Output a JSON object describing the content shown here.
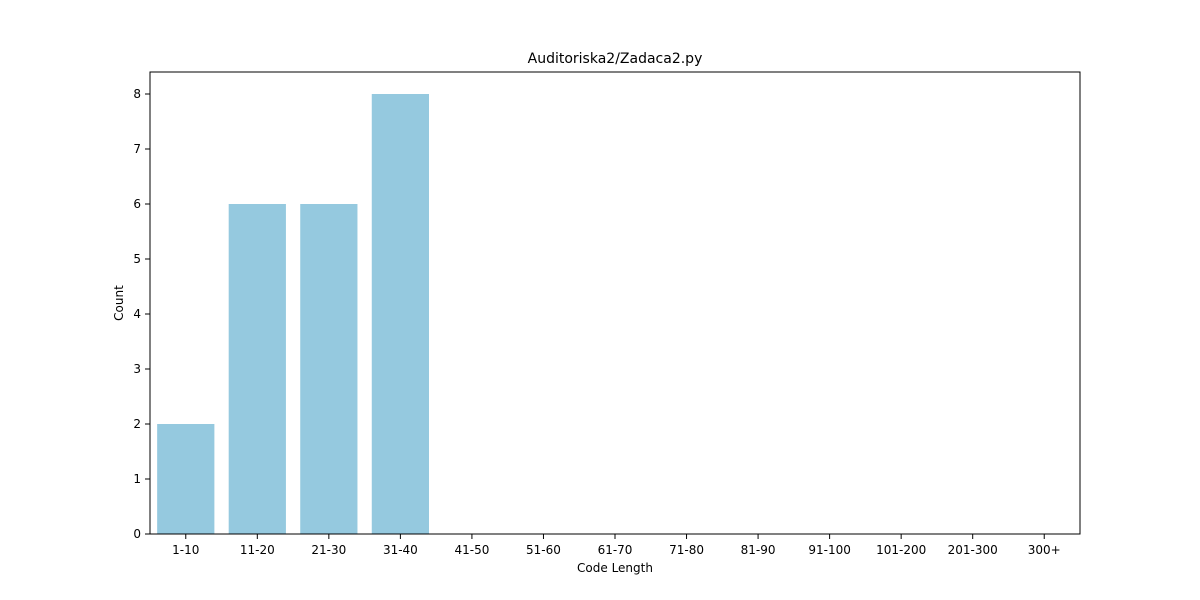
{
  "chart_data": {
    "type": "bar",
    "title": "Auditoriska2/Zadaca2.py",
    "xlabel": "Code Length",
    "ylabel": "Count",
    "categories": [
      "1-10",
      "11-20",
      "21-30",
      "31-40",
      "41-50",
      "51-60",
      "61-70",
      "71-80",
      "81-90",
      "91-100",
      "101-200",
      "201-300",
      "300+"
    ],
    "values": [
      2,
      6,
      6,
      8,
      0,
      0,
      0,
      0,
      0,
      0,
      0,
      0,
      0
    ],
    "ylim": [
      0,
      8.4
    ],
    "yticks": [
      0,
      1,
      2,
      3,
      4,
      5,
      6,
      7,
      8
    ],
    "grid": false,
    "bar_color": "#95c9df"
  }
}
